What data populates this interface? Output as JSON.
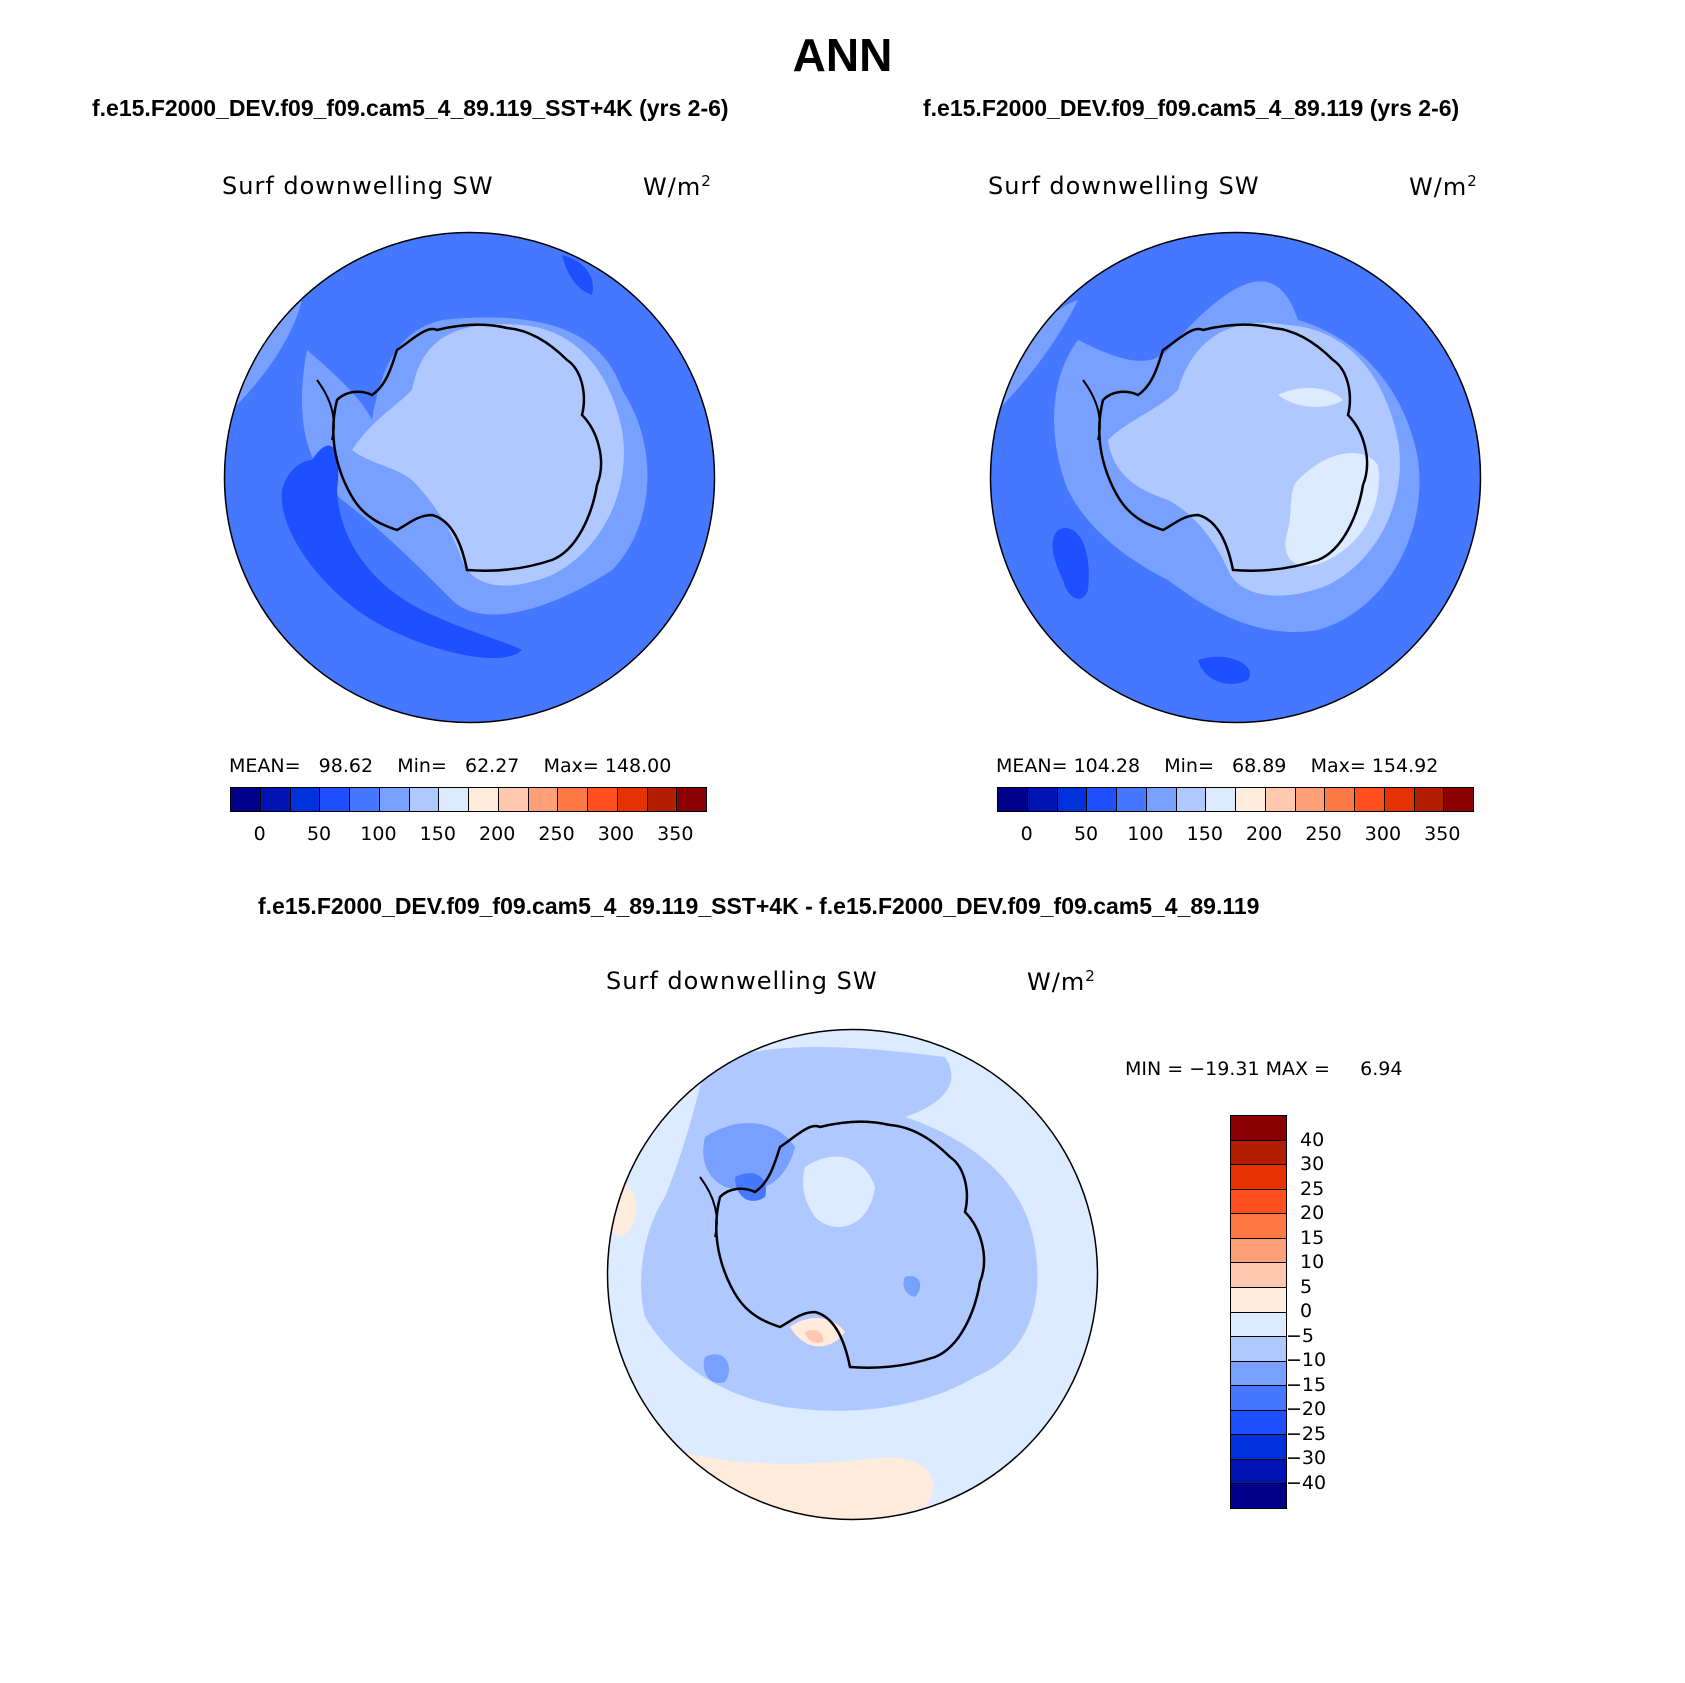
{
  "main_title": "ANN",
  "panels": [
    {
      "case_title": "f.e15.F2000_DEV.f09_f09.cam5_4_89.119_SST+4K (yrs 2-6)",
      "variable": "Surf downwelling SW",
      "units_base": "W/m",
      "units_exp": "2",
      "stats": {
        "mean_label": "MEAN=",
        "mean": "98.62",
        "min_label": "Min=",
        "min": "62.27",
        "max_label": "Max=",
        "max": "148.00"
      },
      "colorbar_ticks": [
        "0",
        "50",
        "100",
        "150",
        "200",
        "250",
        "300",
        "350"
      ]
    },
    {
      "case_title": "f.e15.F2000_DEV.f09_f09.cam5_4_89.119 (yrs 2-6)",
      "variable": "Surf downwelling SW",
      "units_base": "W/m",
      "units_exp": "2",
      "stats": {
        "mean_label": "MEAN=",
        "mean": "104.28",
        "min_label": "Min=",
        "min": "68.89",
        "max_label": "Max=",
        "max": "154.92"
      },
      "colorbar_ticks": [
        "0",
        "50",
        "100",
        "150",
        "200",
        "250",
        "300",
        "350"
      ]
    },
    {
      "case_title": "f.e15.F2000_DEV.f09_f09.cam5_4_89.119_SST+4K - f.e15.F2000_DEV.f09_f09.cam5_4_89.119",
      "variable": "Surf downwelling SW",
      "units_base": "W/m",
      "units_exp": "2",
      "stats": {
        "min_label": "MIN =",
        "min": "−19.31",
        "max_label": "MAX =",
        "max": "6.94"
      },
      "colorbar_ticks": [
        "40",
        "30",
        "25",
        "20",
        "15",
        "10",
        "5",
        "0",
        "−5",
        "−10",
        "−15",
        "−20",
        "−25",
        "−30",
        "−40"
      ]
    }
  ],
  "colors": {
    "abs_scale": [
      "#00008b",
      "#0014b4",
      "#0032dc",
      "#1e50ff",
      "#4678ff",
      "#78a0ff",
      "#afc8ff",
      "#dcebff",
      "#ffebdc",
      "#ffc8af",
      "#ffa078",
      "#ff7846",
      "#ff501e",
      "#e63200",
      "#b41e00",
      "#8b0000"
    ],
    "diff_scale_top_to_bottom": [
      "#8b0000",
      "#b41e00",
      "#e63200",
      "#ff501e",
      "#ff7846",
      "#ffa078",
      "#ffc8af",
      "#ffebdc",
      "#dcebff",
      "#afc8ff",
      "#78a0ff",
      "#4678ff",
      "#1e50ff",
      "#0032dc",
      "#0014b4",
      "#00008b"
    ]
  }
}
